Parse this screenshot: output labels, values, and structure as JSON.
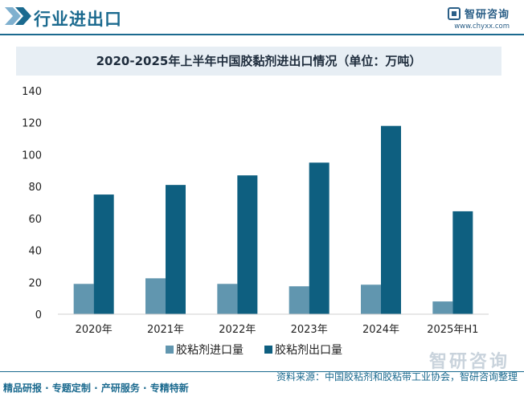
{
  "header": {
    "title": "行业进出口",
    "brand_name": "智研咨询",
    "brand_url": "www.chyxx.com"
  },
  "colors": {
    "import": "#6196af",
    "export": "#0e5f80",
    "accent": "#1b6a8f"
  },
  "chart_data": {
    "type": "bar",
    "title": "2020-2025年上半年中国胶黏剂进出口情况（单位：万吨）",
    "categories": [
      "2020年",
      "2021年",
      "2022年",
      "2023年",
      "2024年",
      "2025年H1"
    ],
    "series": [
      {
        "name": "胶粘剂进口量",
        "values": [
          19,
          22.5,
          19,
          17.5,
          18.5,
          8
        ]
      },
      {
        "name": "胶粘剂出口量",
        "values": [
          75,
          81,
          87,
          95,
          118,
          64.5
        ]
      }
    ],
    "ylim": [
      0,
      140
    ],
    "yticks": [
      0,
      20,
      40,
      60,
      80,
      100,
      120,
      140
    ],
    "grid": false,
    "legend_position": "bottom"
  },
  "watermark": "智研咨询",
  "footer": {
    "left": "精品研报 · 专题定制 · 产研服务 · 专精特新",
    "right": "资料来源：中国胶粘剂和胶粘带工业协会，智研咨询整理"
  }
}
